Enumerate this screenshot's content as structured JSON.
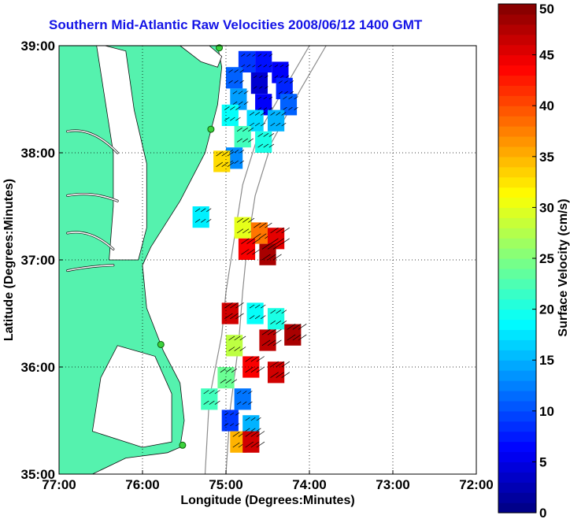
{
  "title": "Southern Mid-Atlantic Raw Velocities 2008/06/12 1400 GMT",
  "xlabel": "Longitude (Degrees:Minutes)",
  "ylabel": "Latitude (Degrees:Minutes)",
  "x_ticks": [
    "77:00",
    "76:00",
    "75:00",
    "74:00",
    "73:00",
    "72:00"
  ],
  "y_ticks": [
    "39:00",
    "38:00",
    "37:00",
    "36:00",
    "35:00"
  ],
  "colorbar": {
    "label": "Surface Velocity (cm/s)",
    "ticks": [
      "50",
      "45",
      "40",
      "35",
      "30",
      "25",
      "20",
      "15",
      "10",
      "5",
      "0"
    ],
    "range": [
      0,
      50
    ]
  },
  "colors": {
    "land": "#55f2ae",
    "water": "#ffffff",
    "title": "#1414e6",
    "bathymetry": "#8c8c8c"
  },
  "chart_data": {
    "type": "heatmap",
    "xlim": [
      -77,
      -72
    ],
    "ylim": [
      35,
      39
    ],
    "grid": true,
    "stations": [
      {
        "lon": -75.08,
        "lat": 38.98
      },
      {
        "lon": -75.18,
        "lat": 38.22
      },
      {
        "lon": -75.78,
        "lat": 36.21
      },
      {
        "lon": -75.52,
        "lat": 35.27
      }
    ],
    "regions": [
      {
        "name": "north",
        "cells": [
          {
            "lon": -74.75,
            "lat": 38.85,
            "v": 9
          },
          {
            "lon": -74.55,
            "lat": 38.85,
            "v": 7
          },
          {
            "lon": -74.35,
            "lat": 38.75,
            "v": 6
          },
          {
            "lon": -74.9,
            "lat": 38.7,
            "v": 11
          },
          {
            "lon": -74.6,
            "lat": 38.65,
            "v": 4
          },
          {
            "lon": -74.3,
            "lat": 38.6,
            "v": 8
          },
          {
            "lon": -74.85,
            "lat": 38.5,
            "v": 14
          },
          {
            "lon": -74.55,
            "lat": 38.45,
            "v": 6
          },
          {
            "lon": -74.25,
            "lat": 38.45,
            "v": 11
          },
          {
            "lon": -74.95,
            "lat": 38.35,
            "v": 19
          },
          {
            "lon": -74.65,
            "lat": 38.3,
            "v": 17
          },
          {
            "lon": -74.4,
            "lat": 38.3,
            "v": 15
          },
          {
            "lon": -74.8,
            "lat": 38.15,
            "v": 22
          },
          {
            "lon": -74.55,
            "lat": 38.1,
            "v": 20
          },
          {
            "lon": -74.9,
            "lat": 37.95,
            "v": 13
          },
          {
            "lon": -75.05,
            "lat": 37.92,
            "v": 33
          }
        ]
      },
      {
        "name": "middle",
        "cells": [
          {
            "lon": -74.8,
            "lat": 37.3,
            "v": 30
          },
          {
            "lon": -74.6,
            "lat": 37.25,
            "v": 38
          },
          {
            "lon": -74.4,
            "lat": 37.2,
            "v": 45
          },
          {
            "lon": -74.75,
            "lat": 37.1,
            "v": 44
          },
          {
            "lon": -74.5,
            "lat": 37.05,
            "v": 48
          },
          {
            "lon": -75.3,
            "lat": 37.4,
            "v": 18
          }
        ]
      },
      {
        "name": "south",
        "cells": [
          {
            "lon": -74.95,
            "lat": 36.5,
            "v": 46
          },
          {
            "lon": -74.65,
            "lat": 36.5,
            "v": 19
          },
          {
            "lon": -74.4,
            "lat": 36.45,
            "v": 20
          },
          {
            "lon": -74.2,
            "lat": 36.3,
            "v": 48
          },
          {
            "lon": -74.5,
            "lat": 36.25,
            "v": 47
          },
          {
            "lon": -74.9,
            "lat": 36.2,
            "v": 28
          },
          {
            "lon": -74.7,
            "lat": 36.0,
            "v": 44
          },
          {
            "lon": -74.4,
            "lat": 35.95,
            "v": 46
          },
          {
            "lon": -75.0,
            "lat": 35.9,
            "v": 24
          },
          {
            "lon": -74.8,
            "lat": 35.7,
            "v": 12
          },
          {
            "lon": -75.2,
            "lat": 35.7,
            "v": 22
          },
          {
            "lon": -74.95,
            "lat": 35.5,
            "v": 9
          },
          {
            "lon": -74.7,
            "lat": 35.45,
            "v": 15
          },
          {
            "lon": -74.85,
            "lat": 35.3,
            "v": 35
          },
          {
            "lon": -74.7,
            "lat": 35.3,
            "v": 46
          }
        ]
      }
    ]
  }
}
